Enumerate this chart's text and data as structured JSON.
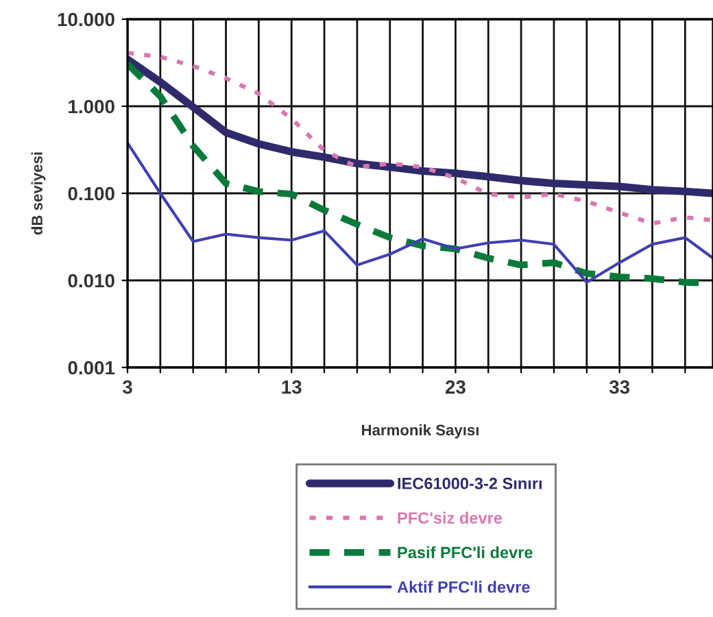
{
  "chart_data": {
    "type": "line",
    "xlabel": "Harmonik Sayısı",
    "ylabel": "dB seviyesi",
    "log": "y",
    "grid": true,
    "legend": "bottom",
    "marker": "none",
    "x": [
      3,
      5,
      7,
      9,
      11,
      13,
      15,
      17,
      19,
      21,
      23,
      25,
      27,
      29,
      31,
      33,
      35,
      37,
      38.7
    ],
    "xlim": [
      3,
      38.7
    ],
    "xticks": [
      3,
      {
        "value": 5,
        "label": null
      },
      {
        "value": 7,
        "label": null
      },
      {
        "value": 9,
        "label": null
      },
      {
        "value": 11,
        "label": null
      },
      13,
      {
        "value": 15,
        "label": null
      },
      {
        "value": 17,
        "label": null
      },
      {
        "value": 19,
        "label": null
      },
      {
        "value": 21,
        "label": null
      },
      23,
      {
        "value": 25,
        "label": null
      },
      {
        "value": 27,
        "label": null
      },
      {
        "value": 29,
        "label": null
      },
      {
        "value": 31,
        "label": null
      },
      33,
      {
        "value": 35,
        "label": null
      },
      {
        "value": 37,
        "label": null
      }
    ],
    "ylim": [
      0.001,
      10
    ],
    "yticks": [
      {
        "value": 0.001,
        "label": "0.001"
      },
      {
        "value": 0.01,
        "label": "0.010"
      },
      {
        "value": 0.1,
        "label": "0.100"
      },
      {
        "value": 1,
        "label": "1.000"
      },
      {
        "value": 10,
        "label": "10.000"
      }
    ],
    "series": [
      {
        "name": "IEC61000-3-2 Sınırı",
        "color": "#2e2a6b",
        "line_style": "solid",
        "values": [
          3.45,
          1.9,
          0.98,
          0.5,
          0.37,
          0.3,
          0.26,
          0.22,
          0.2,
          0.18,
          0.17,
          0.155,
          0.14,
          0.13,
          0.125,
          0.12,
          0.11,
          0.105,
          0.1
        ]
      },
      {
        "name": "PFC'siz devre",
        "color": "#d977b0",
        "line_style": "dotted",
        "values": [
          4.1,
          3.7,
          2.9,
          2.1,
          1.4,
          0.72,
          0.31,
          0.2,
          0.22,
          0.2,
          0.15,
          0.098,
          0.09,
          0.098,
          0.081,
          0.06,
          0.045,
          0.053,
          0.049
        ]
      },
      {
        "name": "Pasif PFC'li devre",
        "color": "#0a7a3a",
        "line_style": "dashed",
        "values": [
          3.06,
          1.3,
          0.35,
          0.13,
          0.105,
          0.098,
          0.064,
          0.044,
          0.031,
          0.025,
          0.023,
          0.018,
          0.015,
          0.016,
          0.012,
          0.011,
          0.0105,
          0.0095,
          0.0093
        ]
      },
      {
        "name": "Aktif PFC'li devre",
        "color": "#4040b0",
        "line_style": "solid",
        "values": [
          0.38,
          0.1,
          0.028,
          0.034,
          0.031,
          0.029,
          0.037,
          0.015,
          0.02,
          0.03,
          0.023,
          0.027,
          0.029,
          0.026,
          0.0095,
          0.016,
          0.026,
          0.031,
          0.018
        ]
      }
    ]
  }
}
